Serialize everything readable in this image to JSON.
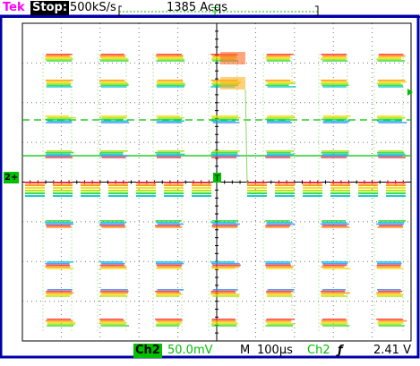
{
  "header": {
    "brand": "Tek",
    "state": "Stop:",
    "sample_rate": "500kS/s",
    "acquisitions": "1385 Acqs",
    "trigger_pos_marker": "T"
  },
  "footer": {
    "channel": "Ch2",
    "volts_per_div": "50.0mV",
    "timebase_label": "M",
    "time_per_div": "100µs",
    "trigger_source": "Ch2",
    "trigger_slope": "ƒ",
    "trigger_level": "2.41 V"
  },
  "markers": {
    "channel_ground": "2+",
    "trigger_point": "T"
  },
  "colors": {
    "frame": "#0000a8",
    "grid": "#000000",
    "trace_accent": "#00c000",
    "brand": "#ff00ff"
  }
}
